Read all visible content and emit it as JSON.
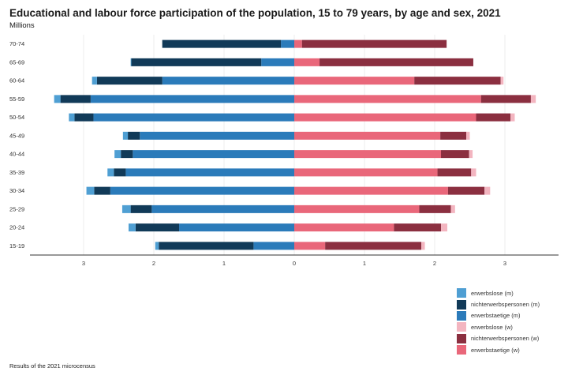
{
  "chart_data": {
    "type": "bar",
    "orientation": "horizontal-population-pyramid",
    "title": "Educational and labour force participation of the population, 15 to 79 years, by age and sex, 2021",
    "unit_label": "Millions",
    "note": "Results of the 2021 microcensus",
    "categories": [
      "70-74",
      "65-69",
      "60-64",
      "55-59",
      "50-54",
      "45-49",
      "40-44",
      "35-39",
      "30-34",
      "25-29",
      "20-24",
      "15-19"
    ],
    "xlim": [
      -3.75,
      3.75
    ],
    "x_ticks": [
      {
        "value": -3,
        "label": "3"
      },
      {
        "value": -2,
        "label": "2"
      },
      {
        "value": -1,
        "label": "1"
      },
      {
        "value": 0,
        "label": "0"
      },
      {
        "value": 1,
        "label": "1"
      },
      {
        "value": 2,
        "label": "2"
      },
      {
        "value": 3,
        "label": "3"
      }
    ],
    "series": [
      {
        "name": "erwerbstaetige (m)",
        "side": "left",
        "color": "#2b7bba",
        "values": [
          0.19,
          0.47,
          1.88,
          2.9,
          2.86,
          2.2,
          2.3,
          2.4,
          2.62,
          2.03,
          1.64,
          0.58
        ]
      },
      {
        "name": "nichterwerbspersonen (m)",
        "side": "left",
        "color": "#113a58",
        "values": [
          1.69,
          1.85,
          0.93,
          0.43,
          0.27,
          0.17,
          0.17,
          0.17,
          0.23,
          0.3,
          0.62,
          1.35
        ]
      },
      {
        "name": "erwerbslose (m)",
        "side": "left",
        "color": "#4f9fd3",
        "values": [
          0.0,
          0.01,
          0.07,
          0.09,
          0.08,
          0.07,
          0.09,
          0.09,
          0.11,
          0.12,
          0.1,
          0.05
        ]
      },
      {
        "name": "erwerbstaetige (w)",
        "side": "right",
        "color": "#e9677a",
        "values": [
          0.11,
          0.36,
          1.71,
          2.66,
          2.59,
          2.08,
          2.09,
          2.04,
          2.19,
          1.78,
          1.42,
          0.44
        ]
      },
      {
        "name": "nichterwerbspersonen (w)",
        "side": "right",
        "color": "#8b2f40",
        "values": [
          2.06,
          2.19,
          1.23,
          0.71,
          0.49,
          0.37,
          0.4,
          0.48,
          0.52,
          0.45,
          0.67,
          1.37
        ]
      },
      {
        "name": "erwerbslose (w)",
        "side": "right",
        "color": "#f3b5c0",
        "values": [
          0.0,
          0.0,
          0.04,
          0.07,
          0.06,
          0.05,
          0.05,
          0.07,
          0.08,
          0.06,
          0.09,
          0.05
        ]
      }
    ],
    "legend": {
      "placement": "bottom-right",
      "entries": [
        {
          "label": "erwerbslose (m)",
          "color": "#4f9fd3"
        },
        {
          "label": "nichterwerbspersonen (m)",
          "color": "#113a58"
        },
        {
          "label": "erwerbstaetige (m)",
          "color": "#2b7bba"
        },
        {
          "label": "erwerbslose (w)",
          "color": "#f3b5c0"
        },
        {
          "label": "nichterwerbspersonen (w)",
          "color": "#8b2f40"
        },
        {
          "label": "erwerbstaetige (w)",
          "color": "#e9677a"
        }
      ]
    }
  }
}
